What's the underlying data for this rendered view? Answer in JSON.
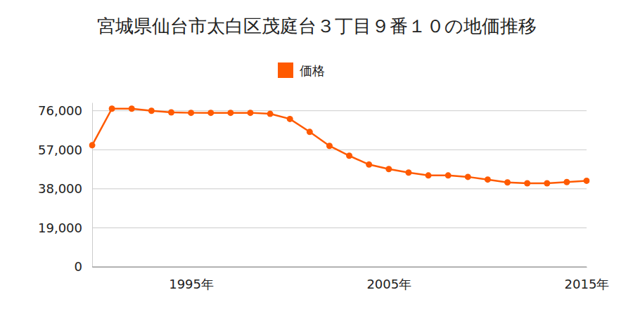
{
  "chart_data": {
    "type": "line",
    "title": "宮城県仙台市太白区茂庭台３丁目９番１０の地価推移",
    "x": [
      1990,
      1991,
      1992,
      1993,
      1994,
      1995,
      1996,
      1997,
      1998,
      1999,
      2000,
      2001,
      2002,
      2003,
      2004,
      2005,
      2006,
      2007,
      2008,
      2009,
      2010,
      2011,
      2012,
      2013,
      2014,
      2015
    ],
    "series": [
      {
        "name": "価格",
        "color": "#ff5a00",
        "marker": "circle",
        "values": [
          59200,
          77000,
          77000,
          76000,
          75200,
          75000,
          75000,
          75000,
          75000,
          74500,
          72000,
          65700,
          58900,
          54100,
          49800,
          47600,
          45900,
          44500,
          44500,
          43800,
          42500,
          41100,
          40700,
          40700,
          41300,
          41900
        ]
      }
    ],
    "xlim": [
      1990,
      2015
    ],
    "xticks": [
      {
        "value": 1995,
        "label": "1995年"
      },
      {
        "value": 2005,
        "label": "2005年"
      },
      {
        "value": 2015,
        "label": "2015年"
      }
    ],
    "ylim": [
      0,
      80000
    ],
    "yticks": [
      0,
      {
        "value": 19000,
        "label": "19,000"
      },
      {
        "value": 38000,
        "label": "38,000"
      },
      {
        "value": 57000,
        "label": "57,000"
      },
      {
        "value": 76000,
        "label": "76,000"
      }
    ],
    "grid": true,
    "legend": "top"
  }
}
